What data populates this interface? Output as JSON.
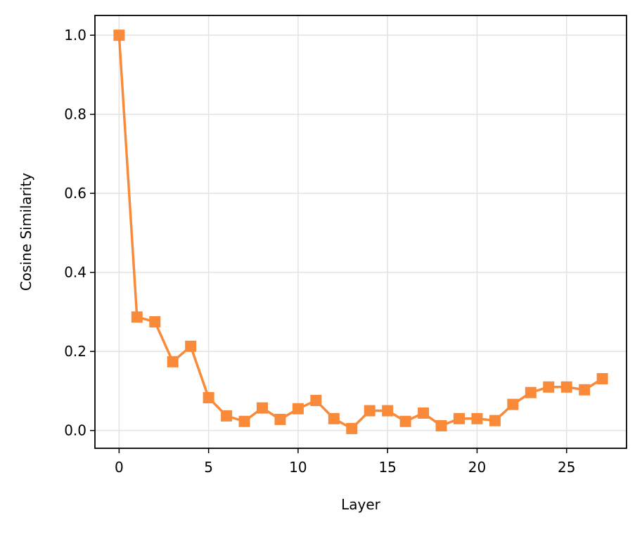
{
  "chart_data": {
    "type": "line",
    "xlabel": "Layer",
    "ylabel": "Cosine Similarity",
    "x": [
      0,
      1,
      2,
      3,
      4,
      5,
      6,
      7,
      8,
      9,
      10,
      11,
      12,
      13,
      14,
      15,
      16,
      17,
      18,
      19,
      20,
      21,
      22,
      23,
      24,
      25,
      26,
      27
    ],
    "series": [
      {
        "color": "#f98a3a",
        "marker": "square",
        "values": [
          1.0,
          0.287,
          0.275,
          0.174,
          0.213,
          0.083,
          0.037,
          0.023,
          0.057,
          0.028,
          0.055,
          0.076,
          0.03,
          0.005,
          0.05,
          0.05,
          0.023,
          0.044,
          0.012,
          0.03,
          0.03,
          0.025,
          0.066,
          0.096,
          0.11,
          0.11,
          0.103,
          0.131
        ]
      }
    ],
    "xlim": [
      -1.35,
      28.35
    ],
    "xticks": [
      0,
      5,
      10,
      15,
      20,
      25
    ],
    "ylim": [
      -0.045,
      1.05
    ],
    "yticks": [
      {
        "value": 0,
        "label": "0.0"
      },
      0.2,
      0.4,
      0.6,
      0.8,
      {
        "value": 1,
        "label": "1.0"
      }
    ],
    "grid": true
  }
}
